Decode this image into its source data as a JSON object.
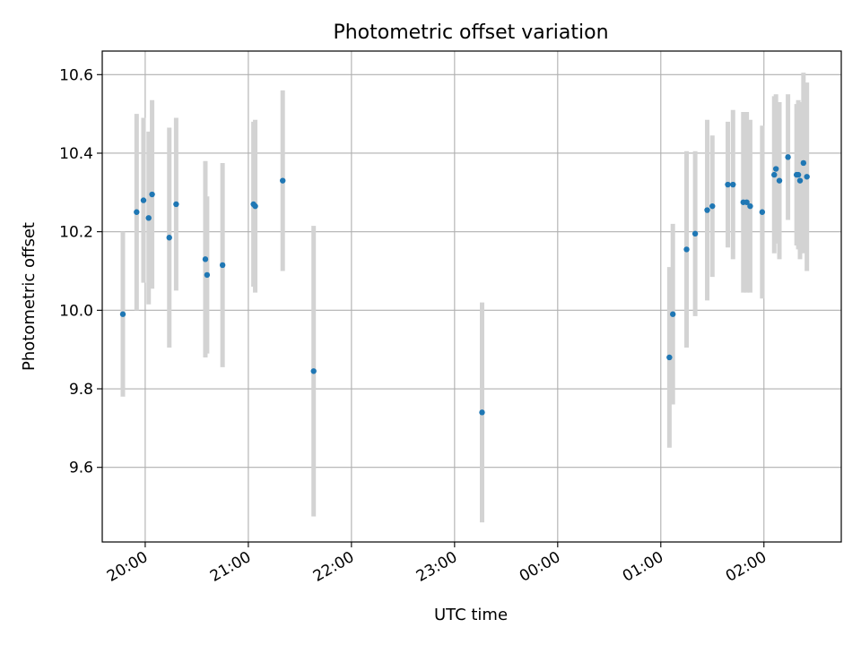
{
  "chart_data": {
    "type": "scatter",
    "title": "Photometric offset variation",
    "xlabel": "UTC time",
    "ylabel": "Photometric offset",
    "xlim": [
      "19:35",
      "02:45"
    ],
    "ylim": [
      9.41,
      10.66
    ],
    "grid": true,
    "legend": "none",
    "x_ticks": [
      "20:00",
      "21:00",
      "22:00",
      "23:00",
      "00:00",
      "01:00",
      "02:00"
    ],
    "y_ticks": [
      "9.6",
      "9.8",
      "10.0",
      "10.2",
      "10.4",
      "10.6"
    ],
    "marker_color": "#1f77b4",
    "errorbar_color": "#d3d3d3",
    "points": [
      {
        "t": "19:47",
        "y": 9.99,
        "err": 0.21
      },
      {
        "t": "19:55",
        "y": 10.25,
        "err": 0.25
      },
      {
        "t": "19:59",
        "y": 10.28,
        "err": 0.21
      },
      {
        "t": "20:02",
        "y": 10.235,
        "err": 0.22
      },
      {
        "t": "20:04",
        "y": 10.295,
        "err": 0.24
      },
      {
        "t": "20:14",
        "y": 10.185,
        "err": 0.28
      },
      {
        "t": "20:18",
        "y": 10.27,
        "err": 0.22
      },
      {
        "t": "20:35",
        "y": 10.13,
        "err": 0.25
      },
      {
        "t": "20:36",
        "y": 10.09,
        "err": 0.2
      },
      {
        "t": "20:45",
        "y": 10.115,
        "err": 0.26
      },
      {
        "t": "21:03",
        "y": 10.27,
        "err": 0.21
      },
      {
        "t": "21:04",
        "y": 10.265,
        "err": 0.22
      },
      {
        "t": "21:20",
        "y": 10.33,
        "err": 0.23
      },
      {
        "t": "21:38",
        "y": 9.845,
        "err": 0.37
      },
      {
        "t": "23:16",
        "y": 9.74,
        "err": 0.28
      },
      {
        "t": "01:05",
        "y": 9.88,
        "err": 0.23
      },
      {
        "t": "01:07",
        "y": 9.99,
        "err": 0.23
      },
      {
        "t": "01:15",
        "y": 10.155,
        "err": 0.25
      },
      {
        "t": "01:20",
        "y": 10.195,
        "err": 0.21
      },
      {
        "t": "01:27",
        "y": 10.255,
        "err": 0.23
      },
      {
        "t": "01:30",
        "y": 10.265,
        "err": 0.18
      },
      {
        "t": "01:39",
        "y": 10.32,
        "err": 0.16
      },
      {
        "t": "01:42",
        "y": 10.32,
        "err": 0.19
      },
      {
        "t": "01:48",
        "y": 10.275,
        "err": 0.23
      },
      {
        "t": "01:50",
        "y": 10.275,
        "err": 0.23
      },
      {
        "t": "01:52",
        "y": 10.265,
        "err": 0.22
      },
      {
        "t": "01:59",
        "y": 10.25,
        "err": 0.22
      },
      {
        "t": "02:06",
        "y": 10.345,
        "err": 0.2
      },
      {
        "t": "02:07",
        "y": 10.36,
        "err": 0.19
      },
      {
        "t": "02:09",
        "y": 10.33,
        "err": 0.2
      },
      {
        "t": "02:14",
        "y": 10.39,
        "err": 0.16
      },
      {
        "t": "02:19",
        "y": 10.345,
        "err": 0.18
      },
      {
        "t": "02:20",
        "y": 10.345,
        "err": 0.19
      },
      {
        "t": "02:21",
        "y": 10.33,
        "err": 0.2
      },
      {
        "t": "02:23",
        "y": 10.375,
        "err": 0.23
      },
      {
        "t": "02:25",
        "y": 10.34,
        "err": 0.24
      }
    ]
  }
}
